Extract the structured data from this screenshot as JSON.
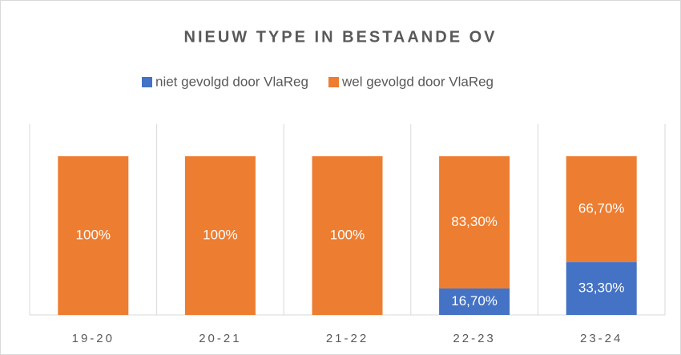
{
  "chart_data": {
    "type": "bar",
    "stacked": true,
    "title": "NIEUW TYPE IN BESTAANDE OV",
    "categories": [
      "19-20",
      "20-21",
      "21-22",
      "22-23",
      "23-24"
    ],
    "series": [
      {
        "name": "niet gevolgd door VlaReg",
        "color": "#4472c4",
        "values": [
          0,
          0,
          0,
          16.7,
          33.3
        ],
        "value_labels": [
          null,
          null,
          null,
          "16,70%",
          "33,30%"
        ]
      },
      {
        "name": "wel gevolgd door VlaReg",
        "color": "#ed7d31",
        "values": [
          100,
          100,
          100,
          83.3,
          66.7
        ],
        "value_labels": [
          "100%",
          "100%",
          "100%",
          "83,30%",
          "66,70%"
        ]
      }
    ],
    "ylim": [
      0,
      100
    ],
    "grid": true,
    "legend": "top"
  }
}
